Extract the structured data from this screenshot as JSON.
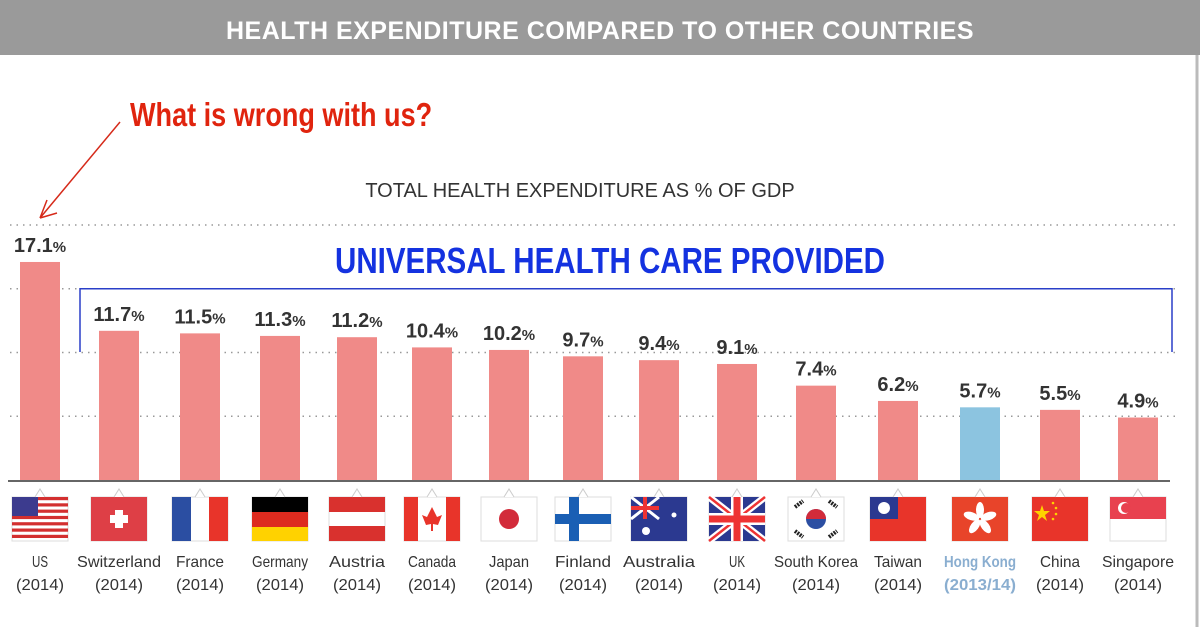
{
  "header": {
    "title": "HEALTH EXPENDITURE COMPARED TO OTHER COUNTRIES"
  },
  "annotation": {
    "text": "What is wrong with us?",
    "color": "#e0240e"
  },
  "bracket_label": {
    "text": "UNIVERSAL HEALTH CARE PROVIDED",
    "color": "#1432e0"
  },
  "chart_data": {
    "type": "bar",
    "title": "TOTAL HEALTH EXPENDITURE AS % OF GDP",
    "categories": [
      "US",
      "Switzerland",
      "France",
      "Germany",
      "Austria",
      "Canada",
      "Japan",
      "Finland",
      "Australia",
      "UK",
      "South Korea",
      "Taiwan",
      "Hong Kong",
      "China",
      "Singapore"
    ],
    "years": [
      "(2014)",
      "(2014)",
      "(2014)",
      "(2014)",
      "(2014)",
      "(2014)",
      "(2014)",
      "(2014)",
      "(2014)",
      "(2014)",
      "(2014)",
      "(2014)",
      "(2013/14)",
      "(2014)",
      "(2014)"
    ],
    "values": [
      17.1,
      11.7,
      11.5,
      11.3,
      11.2,
      10.4,
      10.2,
      9.7,
      9.4,
      9.1,
      7.4,
      6.2,
      5.7,
      5.5,
      4.9
    ],
    "value_labels": [
      "17.1",
      "11.7",
      "11.5",
      "11.3",
      "11.2",
      "10.4",
      "10.2",
      "9.7",
      "9.4",
      "9.1",
      "7.4",
      "6.2",
      "5.7",
      "5.5",
      "4.9"
    ],
    "unit": "%",
    "flags": [
      "us-flag",
      "switzerland-flag",
      "france-flag",
      "germany-flag",
      "austria-flag",
      "canada-flag",
      "japan-flag",
      "finland-flag",
      "australia-flag",
      "uk-flag",
      "south-korea-flag",
      "taiwan-flag",
      "hong-kong-flag",
      "china-flag",
      "singapore-flag"
    ],
    "ylim": [
      0,
      20
    ],
    "gridlines": [
      5,
      10,
      15,
      20
    ],
    "grid": true,
    "bar_color": "#f08a88",
    "highlight_color": "#8cc4e0",
    "highlight_category": "Hong Kong",
    "highlight_label_color": "#8aaed0"
  }
}
